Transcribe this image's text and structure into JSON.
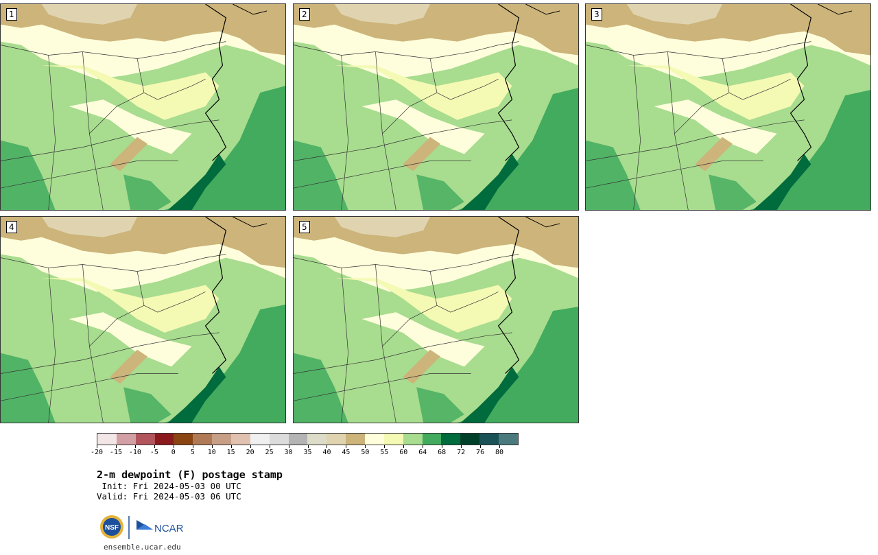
{
  "stamps": [
    {
      "label": "1"
    },
    {
      "label": "2"
    },
    {
      "label": "3"
    },
    {
      "label": "4"
    },
    {
      "label": "5"
    }
  ],
  "colorbar": {
    "colors": [
      "#f3e6e6",
      "#d2a0a4",
      "#b2555c",
      "#8b1a1f",
      "#8b4513",
      "#b07a56",
      "#c79f86",
      "#e1c1b0",
      "#f0f0f0",
      "#dcdcdc",
      "#b4b4b4",
      "#dcdcc8",
      "#e0d4b0",
      "#ccb47a",
      "#fefedc",
      "#f4f9b4",
      "#a8dc8f",
      "#42ab5e",
      "#006b3c",
      "#00402a",
      "#1a5257",
      "#4a7a7e"
    ],
    "tick_labels": [
      "-20",
      "-15",
      "-10",
      "-5",
      "0",
      "5",
      "10",
      "15",
      "20",
      "25",
      "30",
      "35",
      "40",
      "45",
      "50",
      "55",
      "60",
      "64",
      "68",
      "72",
      "76",
      "80"
    ]
  },
  "title": "2-m dewpoint (F) postage stamp",
  "init_text": " Init: Fri 2024-05-03 00 UTC",
  "valid_text": "Valid: Fri 2024-05-03 06 UTC",
  "logos": {
    "nsf": "NSF",
    "ncar": "NCAR"
  },
  "url": "ensemble.ucar.edu"
}
